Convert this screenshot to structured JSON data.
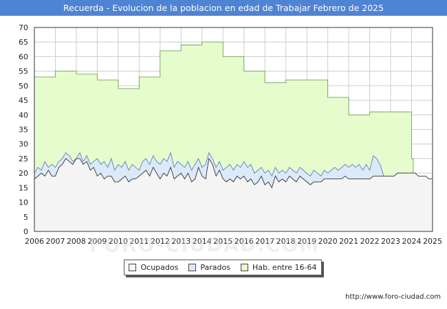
{
  "chart_data": {
    "type": "area",
    "title": "Recuerda - Evolucion de la poblacion en edad de Trabajar Febrero de 2025",
    "xlabel": "",
    "ylabel": "",
    "xlim": [
      2006,
      2025
    ],
    "ylim": [
      0,
      70
    ],
    "yticks": [
      0,
      5,
      10,
      15,
      20,
      25,
      30,
      35,
      40,
      45,
      50,
      55,
      60,
      65,
      70
    ],
    "xticks": [
      2006,
      2007,
      2008,
      2009,
      2010,
      2011,
      2012,
      2013,
      2014,
      2015,
      2016,
      2017,
      2018,
      2019,
      2020,
      2021,
      2022,
      2023,
      2024,
      2025
    ],
    "grid": true,
    "legend_position": "bottom",
    "watermark": "FORO-CIUDAD.COM",
    "series": [
      {
        "name": "Hab. entre 16-64",
        "color": "#e6fccc",
        "stroke": "#6fa55a",
        "step": true,
        "x": [
          2006,
          2007,
          2008,
          2009,
          2010,
          2011,
          2012,
          2013,
          2014,
          2015,
          2016,
          2017,
          2018,
          2019,
          2020,
          2021,
          2022,
          2023,
          2024,
          2024.08
        ],
        "values": [
          53,
          55,
          54,
          52,
          49,
          53,
          62,
          64,
          65,
          60,
          55,
          51,
          52,
          52,
          46,
          40,
          41,
          41,
          25,
          20
        ]
      },
      {
        "name": "Parados",
        "color": "#dce9f9",
        "stroke": "#5b7fbf",
        "x": [
          2006.0,
          2006.17,
          2006.33,
          2006.5,
          2006.67,
          2006.83,
          2007.0,
          2007.17,
          2007.33,
          2007.5,
          2007.67,
          2007.83,
          2008.0,
          2008.17,
          2008.33,
          2008.5,
          2008.67,
          2008.83,
          2009.0,
          2009.17,
          2009.33,
          2009.5,
          2009.67,
          2009.83,
          2010.0,
          2010.17,
          2010.33,
          2010.5,
          2010.67,
          2010.83,
          2011.0,
          2011.17,
          2011.33,
          2011.5,
          2011.67,
          2011.83,
          2012.0,
          2012.17,
          2012.33,
          2012.5,
          2012.67,
          2012.83,
          2013.0,
          2013.17,
          2013.33,
          2013.5,
          2013.67,
          2013.83,
          2014.0,
          2014.17,
          2014.33,
          2014.5,
          2014.67,
          2014.83,
          2015.0,
          2015.17,
          2015.33,
          2015.5,
          2015.67,
          2015.83,
          2016.0,
          2016.17,
          2016.33,
          2016.5,
          2016.67,
          2016.83,
          2017.0,
          2017.17,
          2017.33,
          2017.5,
          2017.67,
          2017.83,
          2018.0,
          2018.17,
          2018.33,
          2018.5,
          2018.67,
          2018.83,
          2019.0,
          2019.17,
          2019.33,
          2019.5,
          2019.67,
          2019.83,
          2020.0,
          2020.17,
          2020.33,
          2020.5,
          2020.67,
          2020.83,
          2021.0,
          2021.17,
          2021.33,
          2021.5,
          2021.67,
          2021.83,
          2022.0,
          2022.17,
          2022.33,
          2022.5,
          2022.67,
          2022.83,
          2023.0,
          2023.17,
          2023.33,
          2023.5,
          2023.67,
          2023.83,
          2024.0
        ],
        "values": [
          20,
          22,
          21,
          24,
          22,
          23,
          22,
          24,
          25,
          27,
          26,
          24,
          25,
          27,
          24,
          26,
          23,
          24,
          25,
          23,
          24,
          22,
          25,
          21,
          23,
          22,
          24,
          21,
          23,
          22,
          21,
          24,
          25,
          23,
          26,
          24,
          23,
          25,
          24,
          27,
          22,
          24,
          23,
          22,
          24,
          21,
          23,
          25,
          22,
          23,
          27,
          25,
          22,
          24,
          21,
          22,
          23,
          21,
          23,
          22,
          24,
          22,
          23,
          20,
          21,
          22,
          20,
          21,
          19,
          22,
          20,
          21,
          20,
          22,
          21,
          20,
          22,
          21,
          20,
          19,
          21,
          20,
          19,
          21,
          20,
          21,
          22,
          21,
          22,
          23,
          22,
          23,
          22,
          23,
          21,
          23,
          21,
          26,
          25,
          23,
          19,
          19,
          19,
          19,
          20,
          20,
          20,
          20,
          20
        ]
      },
      {
        "name": "Ocupados",
        "color": "#f4f4f4",
        "stroke": "#333333",
        "x": [
          2006.0,
          2006.17,
          2006.33,
          2006.5,
          2006.67,
          2006.83,
          2007.0,
          2007.17,
          2007.33,
          2007.5,
          2007.67,
          2007.83,
          2008.0,
          2008.17,
          2008.33,
          2008.5,
          2008.67,
          2008.83,
          2009.0,
          2009.17,
          2009.33,
          2009.5,
          2009.67,
          2009.83,
          2010.0,
          2010.17,
          2010.33,
          2010.5,
          2010.67,
          2010.83,
          2011.0,
          2011.17,
          2011.33,
          2011.5,
          2011.67,
          2011.83,
          2012.0,
          2012.17,
          2012.33,
          2012.5,
          2012.67,
          2012.83,
          2013.0,
          2013.17,
          2013.33,
          2013.5,
          2013.67,
          2013.83,
          2014.0,
          2014.17,
          2014.33,
          2014.5,
          2014.67,
          2014.83,
          2015.0,
          2015.17,
          2015.33,
          2015.5,
          2015.67,
          2015.83,
          2016.0,
          2016.17,
          2016.33,
          2016.5,
          2016.67,
          2016.83,
          2017.0,
          2017.17,
          2017.33,
          2017.5,
          2017.67,
          2017.83,
          2018.0,
          2018.17,
          2018.33,
          2018.5,
          2018.67,
          2018.83,
          2019.0,
          2019.17,
          2019.33,
          2019.5,
          2019.67,
          2019.83,
          2020.0,
          2020.17,
          2020.33,
          2020.5,
          2020.67,
          2020.83,
          2021.0,
          2021.17,
          2021.33,
          2021.5,
          2021.67,
          2021.83,
          2022.0,
          2022.17,
          2022.33,
          2022.5,
          2022.67,
          2022.83,
          2023.0,
          2023.17,
          2023.33,
          2023.5,
          2023.67,
          2023.83,
          2024.0,
          2024.17,
          2024.33,
          2024.5,
          2024.67,
          2024.83,
          2025.0
        ],
        "values": [
          18,
          19,
          20,
          19,
          21,
          19,
          19,
          22,
          23,
          25,
          24,
          23,
          25,
          25,
          23,
          24,
          21,
          22,
          19,
          20,
          18,
          19,
          19,
          17,
          17,
          18,
          19,
          17,
          18,
          18,
          19,
          20,
          21,
          19,
          22,
          20,
          18,
          20,
          19,
          22,
          18,
          19,
          20,
          18,
          20,
          17,
          18,
          22,
          19,
          18,
          25,
          23,
          19,
          21,
          18,
          17,
          18,
          17,
          19,
          18,
          19,
          17,
          18,
          16,
          17,
          19,
          16,
          17,
          15,
          19,
          17,
          18,
          17,
          19,
          18,
          17,
          19,
          18,
          17,
          16,
          17,
          17,
          17,
          18,
          18,
          18,
          18,
          18,
          18,
          19,
          18,
          18,
          18,
          18,
          18,
          18,
          18,
          19,
          19,
          19,
          19,
          19,
          19,
          19,
          20,
          20,
          20,
          20,
          20,
          20,
          19,
          19,
          19,
          18,
          18
        ]
      }
    ]
  },
  "legend": {
    "items": [
      "Ocupados",
      "Parados",
      "Hab. entre 16-64"
    ]
  },
  "footer": {
    "source_url": "http://www.foro-ciudad.com"
  },
  "colors": {
    "title_bg": "#4f83d3",
    "grid": "#cccccc"
  }
}
